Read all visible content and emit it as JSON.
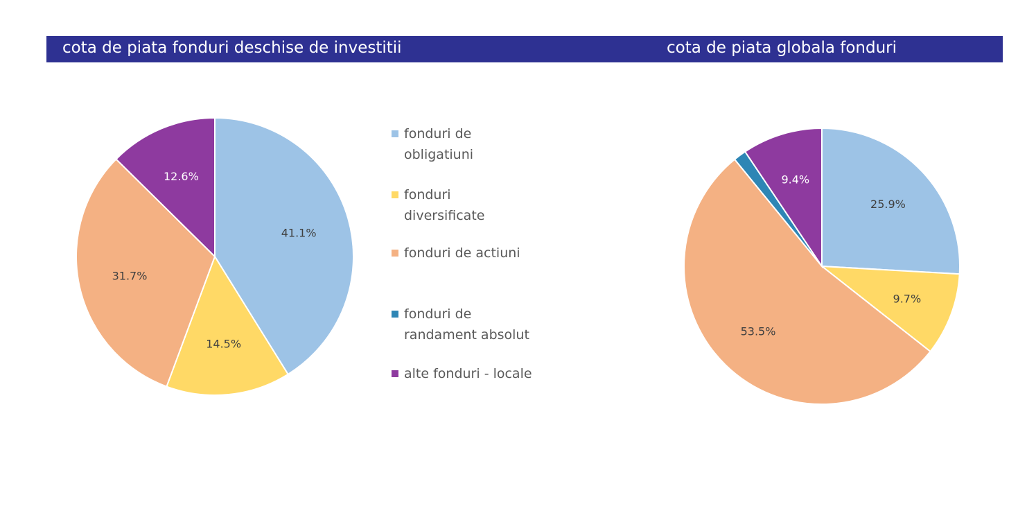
{
  "chart_data": [
    {
      "type": "pie",
      "title": "cota de piata fonduri deschise de investitii",
      "categories": [
        "fonduri de obligatiuni",
        "fonduri diversificate",
        "fonduri de actiuni",
        "fonduri de randament absolut",
        "alte fonduri - locale"
      ],
      "values": [
        41.1,
        14.5,
        31.7,
        0,
        12.6
      ],
      "data_labels": [
        "41.1%",
        "14.5%",
        "31.7%",
        "",
        "12.6%"
      ],
      "colors": [
        "#9DC3E6",
        "#FFD966",
        "#F4B183",
        "#2E86B5",
        "#8E3A9F"
      ],
      "legend": "right"
    },
    {
      "type": "pie",
      "title": "cota de piata globala fonduri",
      "categories": [
        "fonduri de obligatiuni",
        "fonduri diversificate",
        "fonduri de actiuni",
        "fonduri de randament absolut",
        "alte fonduri - locale"
      ],
      "values": [
        25.9,
        9.7,
        53.5,
        1.5,
        9.4
      ],
      "data_labels": [
        "25.9%",
        "9.7%",
        "53.5%",
        "",
        "9.4%"
      ],
      "colors": [
        "#9DC3E6",
        "#FFD966",
        "#F4B183",
        "#2E86B5",
        "#8E3A9F"
      ]
    }
  ],
  "legend": {
    "items": [
      {
        "label_lines": [
          "fonduri de",
          "obligatiuni"
        ],
        "color": "#9DC3E6"
      },
      {
        "label_lines": [
          "fonduri",
          "diversificate"
        ],
        "color": "#FFD966"
      },
      {
        "label_lines": [
          "fonduri de actiuni"
        ],
        "color": "#F4B183"
      },
      {
        "label_lines": [
          "fonduri de",
          "randament absolut"
        ],
        "color": "#2E86B5"
      },
      {
        "label_lines": [
          "alte fonduri - locale"
        ],
        "color": "#8E3A9F"
      }
    ]
  },
  "banner_color": "#2E3192"
}
